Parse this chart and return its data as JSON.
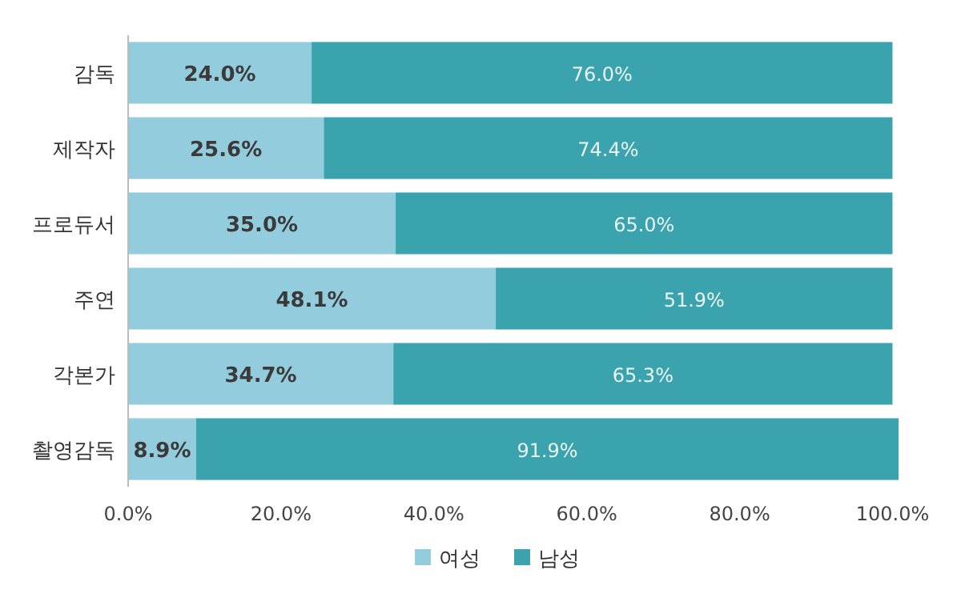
{
  "chart_data": {
    "type": "bar",
    "orientation": "horizontal",
    "stacked": true,
    "categories": [
      "감독",
      "제작자",
      "프로듀서",
      "주연",
      "각본가",
      "촬영감독"
    ],
    "series": [
      {
        "name": "여성",
        "color": "#93cddd",
        "values": [
          24.0,
          25.6,
          35.0,
          48.1,
          34.7,
          8.9
        ],
        "value_labels": [
          "24.0%",
          "25.6%",
          "35.0%",
          "48.1%",
          "34.7%",
          "8.9%"
        ]
      },
      {
        "name": "남성",
        "color": "#3aa3ad",
        "values": [
          76.0,
          74.4,
          65.0,
          51.9,
          65.3,
          91.9
        ],
        "value_labels": [
          "76.0%",
          "74.4%",
          "65.0%",
          "51.9%",
          "65.3%",
          "91.9%"
        ]
      }
    ],
    "xlim": [
      0,
      101
    ],
    "xticks": [
      {
        "value": 0,
        "label": "0.0%"
      },
      {
        "value": 20,
        "label": "20.0%"
      },
      {
        "value": 40,
        "label": "40.0%"
      },
      {
        "value": 60,
        "label": "60.0%"
      },
      {
        "value": 80,
        "label": "80.0%"
      },
      {
        "value": 100,
        "label": "100.0%"
      }
    ],
    "legend": "bottom"
  }
}
